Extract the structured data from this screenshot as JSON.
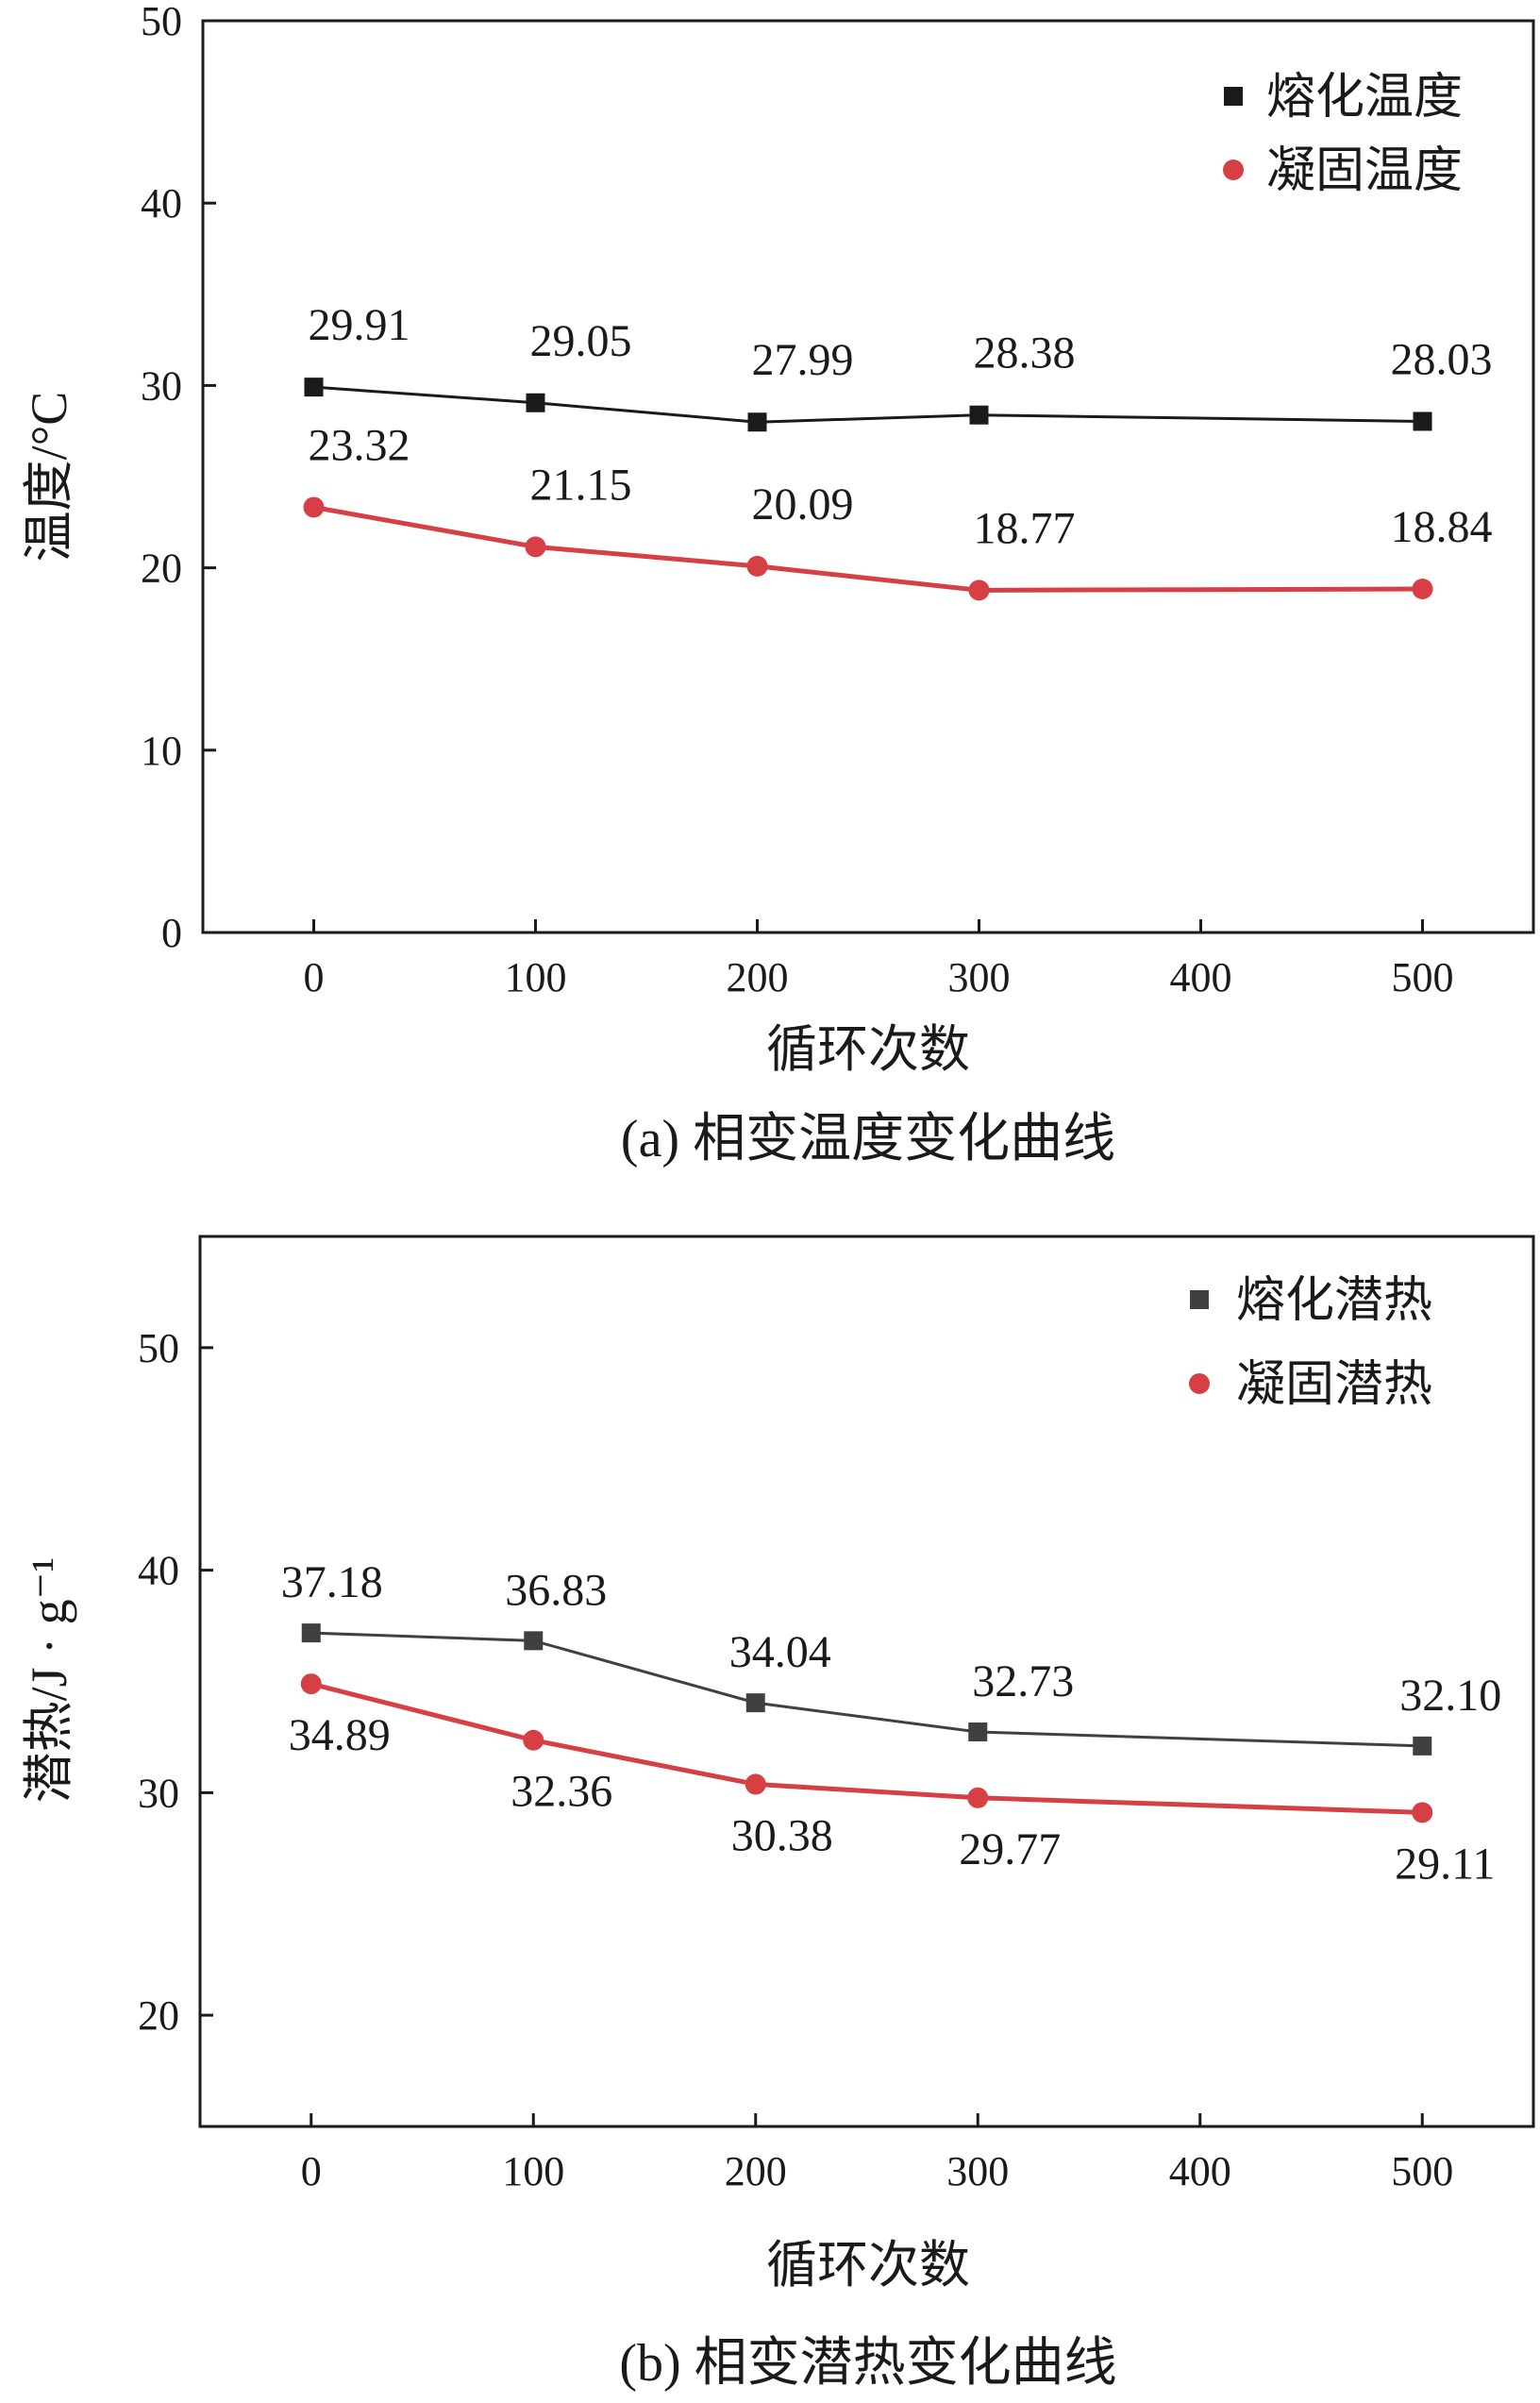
{
  "chart_data": [
    {
      "type": "line",
      "caption": "(a) 相变温度变化曲线",
      "xlabel": "循环次数",
      "ylabel": "温度/°C",
      "x": [
        0,
        100,
        200,
        300,
        500
      ],
      "xlim": [
        -50,
        550
      ],
      "ylim": [
        0,
        50
      ],
      "xticks": [
        "0",
        "100",
        "200",
        "300",
        "400",
        "500"
      ],
      "yticks": [
        "0",
        "10",
        "20",
        "30",
        "40",
        "50"
      ],
      "legend_position": "top-right",
      "grid": false,
      "series": [
        {
          "name": "熔化温度",
          "marker": "square",
          "color": "#1a1a1a",
          "values": [
            29.91,
            29.05,
            27.99,
            28.38,
            28.03
          ],
          "labels": [
            "29.91",
            "29.05",
            "27.99",
            "28.38",
            "28.03"
          ]
        },
        {
          "name": "凝固温度",
          "marker": "circle",
          "color": "#d64045",
          "values": [
            23.32,
            21.15,
            20.09,
            18.77,
            18.84
          ],
          "labels": [
            "23.32",
            "21.15",
            "20.09",
            "18.77",
            "18.84"
          ]
        }
      ]
    },
    {
      "type": "line",
      "caption": "(b) 相变潜热变化曲线",
      "xlabel": "循环次数",
      "ylabel": "潜热/J · g⁻¹",
      "x": [
        0,
        100,
        200,
        300,
        500
      ],
      "xlim": [
        -50,
        550
      ],
      "ylim": [
        15,
        55
      ],
      "xticks": [
        "0",
        "100",
        "200",
        "300",
        "400",
        "500"
      ],
      "yticks": [
        "20",
        "30",
        "40",
        "50"
      ],
      "legend_position": "top-right",
      "grid": false,
      "series": [
        {
          "name": "熔化潜热",
          "marker": "square",
          "color": "#404040",
          "values": [
            37.18,
            36.83,
            34.04,
            32.73,
            32.1
          ],
          "labels": [
            "37.18",
            "36.83",
            "34.04",
            "32.73",
            "32.10"
          ]
        },
        {
          "name": "凝固潜热",
          "marker": "circle",
          "color": "#d64045",
          "values": [
            34.89,
            32.36,
            30.38,
            29.77,
            29.11
          ],
          "labels": [
            "34.89",
            "32.36",
            "30.38",
            "29.77",
            "29.11"
          ]
        }
      ]
    }
  ]
}
